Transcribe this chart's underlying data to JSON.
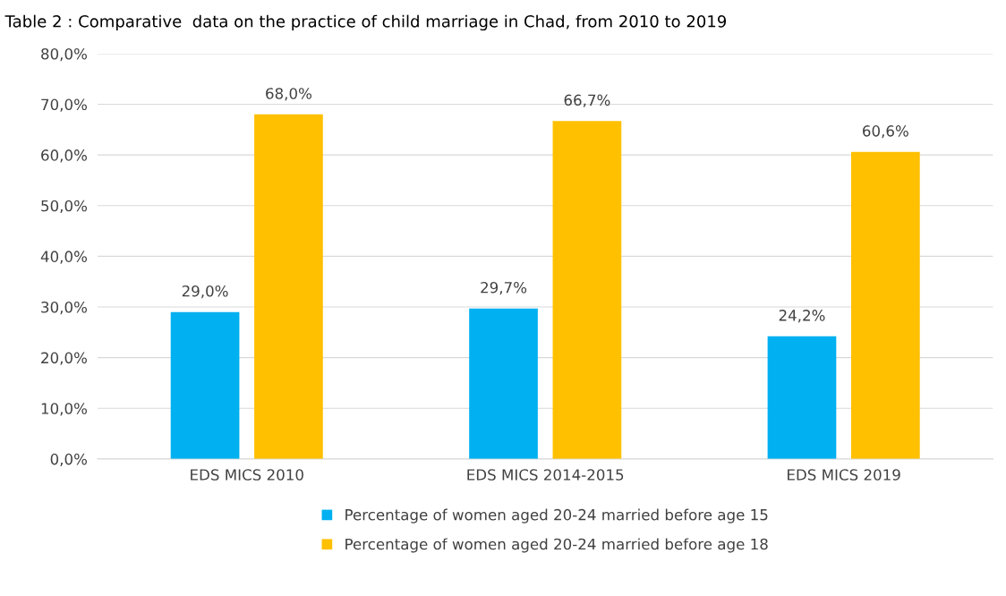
{
  "chart_data": {
    "type": "bar",
    "title": "Table 2 : Comparative  data on the practice of child marriage in Chad, from 2010 to 2019",
    "categories": [
      "EDS MICS 2010",
      "EDS MICS 2014-2015",
      "EDS MICS 2019"
    ],
    "series": [
      {
        "name": "Percentage of women aged 20-24 married before age 15",
        "color": "#00b0f0",
        "values": [
          29.0,
          29.7,
          24.2
        ],
        "value_labels": [
          "29,0%",
          "29,7%",
          "24,2%"
        ]
      },
      {
        "name": "Percentage of women aged 20-24 married before age 18",
        "color": "#ffc000",
        "values": [
          68.0,
          66.7,
          60.6
        ],
        "value_labels": [
          "68,0%",
          "66,7%",
          "60,6%"
        ]
      }
    ],
    "ylim": [
      0,
      80
    ],
    "yticks": [
      {
        "value": 0,
        "label": "0,0%"
      },
      {
        "value": 10,
        "label": "10,0%"
      },
      {
        "value": 20,
        "label": "20,0%"
      },
      {
        "value": 30,
        "label": "30,0%"
      },
      {
        "value": 40,
        "label": "40,0%"
      },
      {
        "value": 50,
        "label": "50,0%"
      },
      {
        "value": 60,
        "label": "60,0%"
      },
      {
        "value": 70,
        "label": "70,0%"
      },
      {
        "value": 80,
        "label": "80,0%"
      }
    ],
    "grid": "y",
    "legend": "bottom"
  }
}
